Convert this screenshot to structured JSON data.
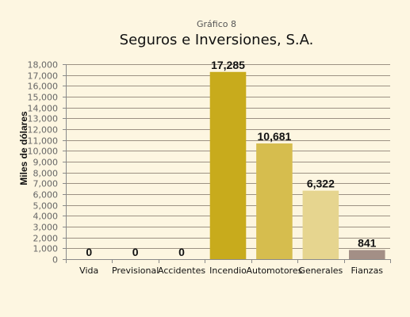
{
  "chart_data": {
    "type": "bar",
    "subtitle": "Gráfico 8",
    "title": "Seguros e Inversiones, S.A.",
    "ylabel": "Miles de dólares",
    "xlabel": "",
    "ylim": [
      0,
      18000
    ],
    "yticks": [
      0,
      1000,
      2000,
      3000,
      4000,
      5000,
      6000,
      7000,
      8000,
      9000,
      10000,
      11000,
      12000,
      13000,
      14000,
      15000,
      16000,
      17000,
      18000
    ],
    "ytick_labels": [
      "0",
      "1,000",
      "2,000",
      "3,000",
      "4,000",
      "5,000",
      "6,000",
      "7,000",
      "8,000",
      "9,000",
      "10,000",
      "11,000",
      "12,000",
      "13,000",
      "14,000",
      "15,000",
      "16,000",
      "17,000",
      "18,000"
    ],
    "categories": [
      "Vida",
      "Previsional",
      "Accidentes",
      "Incendio",
      "Automotores",
      "Generales",
      "Fianzas"
    ],
    "values": [
      0,
      0,
      0,
      17285,
      10681,
      6322,
      841
    ],
    "data_labels": [
      "0",
      "0",
      "0",
      "17,285",
      "10,681",
      "6,322",
      "841"
    ],
    "bar_colors": [
      "#c8ab1c",
      "#c8ab1c",
      "#c8ab1c",
      "#c8ab1c",
      "#d6bd4e",
      "#e6d58f",
      "#a38f86"
    ],
    "grid": true,
    "legend": "none"
  },
  "colors": {
    "background": "#fdf6e1",
    "gridline": "#9c9183",
    "axis": "#8a8a8a"
  }
}
